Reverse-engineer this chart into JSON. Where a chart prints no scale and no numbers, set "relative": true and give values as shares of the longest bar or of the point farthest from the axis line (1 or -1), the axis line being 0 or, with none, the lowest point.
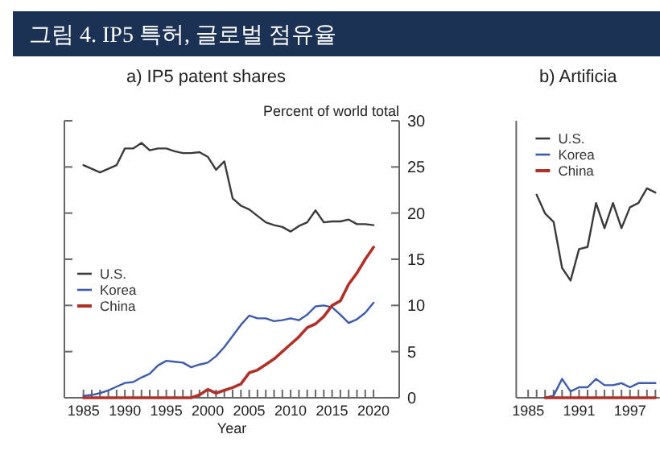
{
  "chart_data": [
    {
      "type": "line",
      "title": "그림 4. IP5 특허, 글로벌 점유율",
      "subtitle": "a) IP5 patent shares",
      "xlabel": "Year",
      "ylabel": "Percent of world total",
      "x": [
        1985,
        1986,
        1987,
        1988,
        1989,
        1990,
        1991,
        1992,
        1993,
        1994,
        1995,
        1996,
        1997,
        1998,
        1999,
        2000,
        2001,
        2002,
        2003,
        2004,
        2005,
        2006,
        2007,
        2008,
        2009,
        2010,
        2011,
        2012,
        2013,
        2014,
        2015,
        2016,
        2017,
        2018,
        2019,
        2020
      ],
      "series": [
        {
          "name": "U.S.",
          "color": "#3a3a3a",
          "values": [
            25.2,
            24.8,
            24.4,
            24.8,
            25.2,
            27.0,
            27.0,
            27.6,
            26.8,
            27.0,
            27.0,
            26.7,
            26.5,
            26.5,
            26.6,
            26.1,
            24.7,
            25.6,
            21.6,
            20.8,
            20.4,
            19.7,
            19.0,
            18.7,
            18.5,
            18.0,
            18.6,
            19.0,
            20.3,
            19.0,
            19.1,
            19.1,
            19.3,
            18.8,
            18.8,
            18.7
          ]
        },
        {
          "name": "Korea",
          "color": "#3d5ba8",
          "values": [
            0.2,
            0.3,
            0.5,
            0.8,
            1.2,
            1.6,
            1.7,
            2.2,
            2.6,
            3.5,
            4.0,
            3.9,
            3.8,
            3.3,
            3.6,
            3.8,
            4.5,
            5.5,
            6.7,
            7.9,
            8.9,
            8.6,
            8.6,
            8.3,
            8.4,
            8.6,
            8.4,
            9.0,
            9.9,
            10.0,
            9.8,
            9.0,
            8.1,
            8.5,
            9.2,
            10.3
          ]
        },
        {
          "name": "China",
          "color": "#b0302a",
          "values": [
            0,
            0,
            0,
            0,
            0,
            0,
            0,
            0,
            0,
            0,
            0,
            0,
            0,
            0,
            0.3,
            0.9,
            0.5,
            0.8,
            1.1,
            1.5,
            2.7,
            3.0,
            3.6,
            4.2,
            5.0,
            5.8,
            6.6,
            7.6,
            8.0,
            8.8,
            10.0,
            10.5,
            12.3,
            13.5,
            15.0,
            16.3
          ]
        }
      ],
      "xlim": [
        1982.7,
        2023.1
      ],
      "ylim": [
        0,
        30
      ],
      "xticks": [
        1985,
        {
          "value": 1986,
          "label": null
        },
        {
          "value": 1987,
          "label": null
        },
        {
          "value": 1988,
          "label": null
        },
        {
          "value": 1989,
          "label": null
        },
        1990,
        {
          "value": 1991,
          "label": null
        },
        {
          "value": 1992,
          "label": null
        },
        {
          "value": 1993,
          "label": null
        },
        {
          "value": 1994,
          "label": null
        },
        1995,
        {
          "value": 1996,
          "label": null
        },
        {
          "value": 1997,
          "label": null
        },
        {
          "value": 1998,
          "label": null
        },
        {
          "value": 1999,
          "label": null
        },
        2000,
        {
          "value": 2001,
          "label": null
        },
        {
          "value": 2002,
          "label": null
        },
        {
          "value": 2003,
          "label": null
        },
        {
          "value": 2004,
          "label": null
        },
        2005,
        {
          "value": 2006,
          "label": null
        },
        {
          "value": 2007,
          "label": null
        },
        {
          "value": 2008,
          "label": null
        },
        {
          "value": 2009,
          "label": null
        },
        2010,
        {
          "value": 2011,
          "label": null
        },
        {
          "value": 2012,
          "label": null
        },
        {
          "value": 2013,
          "label": null
        },
        {
          "value": 2014,
          "label": null
        },
        2015,
        {
          "value": 2016,
          "label": null
        },
        {
          "value": 2017,
          "label": null
        },
        {
          "value": 2018,
          "label": null
        },
        {
          "value": 2019,
          "label": null
        },
        2020
      ],
      "yticks": [
        0,
        5,
        10,
        15,
        20,
        25,
        30
      ],
      "legend": "left"
    },
    {
      "type": "line",
      "title": "b) Artificia",
      "relative": true,
      "x": [
        1986,
        1987,
        1988,
        1989,
        1990,
        1991,
        1992,
        1993,
        1994,
        1995,
        1996,
        1997,
        1998,
        1999,
        2000
      ],
      "series": [
        {
          "name": "U.S.",
          "color": "#3a3a3a",
          "values": [
            0.97,
            0.88,
            0.84,
            0.62,
            0.56,
            0.71,
            0.72,
            0.93,
            0.81,
            0.93,
            0.81,
            0.91,
            0.93,
            1.0,
            0.98
          ]
        },
        {
          "name": "Korea",
          "color": "#3d5ba8",
          "values": [
            null,
            0,
            0.01,
            0.09,
            0.03,
            0.05,
            0.05,
            0.09,
            0.06,
            0.06,
            0.07,
            0.05,
            0.07,
            0.07,
            0.07
          ]
        },
        {
          "name": "China",
          "color": "#b0302a",
          "values": [
            null,
            0,
            0,
            0,
            0,
            0,
            0,
            0,
            0,
            0,
            0,
            0,
            0,
            0,
            0
          ]
        }
      ],
      "xlim": [
        1983.6,
        2000.5
      ],
      "xticks": [
        1985,
        {
          "value": 1986,
          "label": null
        },
        {
          "value": 1987,
          "label": null
        },
        {
          "value": 1988,
          "label": null
        },
        {
          "value": 1989,
          "label": null
        },
        {
          "value": 1990,
          "label": null
        },
        1991,
        {
          "value": 1992,
          "label": null
        },
        {
          "value": 1993,
          "label": null
        },
        {
          "value": 1994,
          "label": null
        },
        {
          "value": 1995,
          "label": null
        },
        {
          "value": 1996,
          "label": null
        },
        1997,
        {
          "value": 1998,
          "label": null
        },
        {
          "value": 1999,
          "label": null
        },
        {
          "value": 2000,
          "label": null
        }
      ],
      "legend": "top left"
    }
  ]
}
